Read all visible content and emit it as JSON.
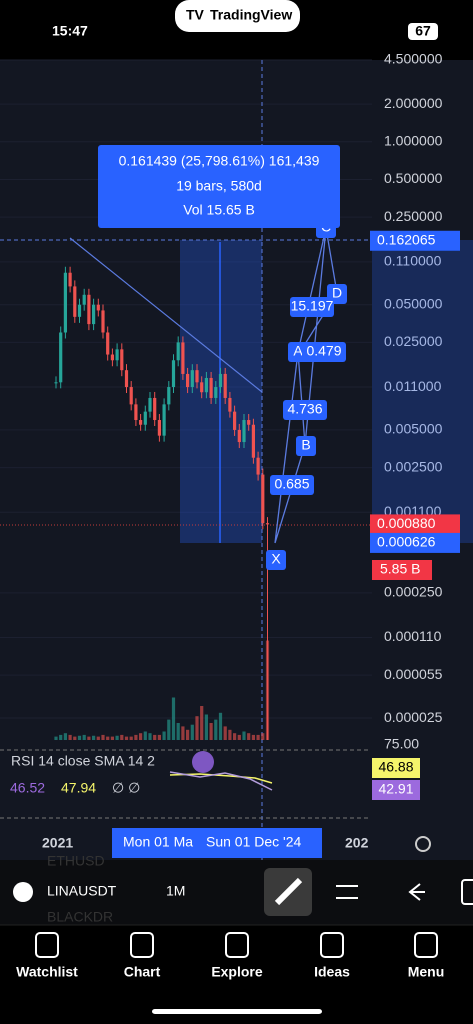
{
  "status_bar": {
    "time": "15:47",
    "app": "TradingView",
    "battery": "67"
  },
  "chart_data": {
    "type": "candlestick",
    "yscale": "log",
    "ylim": [
      1.67e-05,
      4.5
    ],
    "yticks": [
      {
        "value": 4.5,
        "label": "4.500000"
      },
      {
        "value": 2,
        "label": "2.000000"
      },
      {
        "value": 1,
        "label": "1.000000"
      },
      {
        "value": 0.5,
        "label": "0.500000"
      },
      {
        "value": 0.25,
        "label": "0.250000"
      },
      {
        "value": 0.11,
        "label": "0.110000"
      },
      {
        "value": 0.05,
        "label": "0.050000"
      },
      {
        "value": 0.025,
        "label": "0.025000"
      },
      {
        "value": 0.011,
        "label": "0.011000"
      },
      {
        "value": 0.005,
        "label": "0.005000"
      },
      {
        "value": 0.0025,
        "label": "0.002500"
      },
      {
        "value": 0.0011,
        "label": "0.001100"
      },
      {
        "value": 0.00025,
        "label": "0.000250"
      },
      {
        "value": 0.00011,
        "label": "0.000110"
      },
      {
        "value": 5.5e-05,
        "label": "0.000055"
      },
      {
        "value": 2.5e-05,
        "label": "0.000025"
      }
    ],
    "closes": [
      0.012,
      0.03,
      0.09,
      0.07,
      0.04,
      0.05,
      0.06,
      0.035,
      0.05,
      0.045,
      0.03,
      0.02,
      0.018,
      0.022,
      0.015,
      0.011,
      0.008,
      0.006,
      0.0055,
      0.007,
      0.009,
      0.006,
      0.0045,
      0.008,
      0.011,
      0.018,
      0.025,
      0.014,
      0.011,
      0.015,
      0.012,
      0.01,
      0.013,
      0.009,
      0.011,
      0.014,
      0.009,
      0.007,
      0.005,
      0.004,
      0.006,
      0.0055,
      0.003,
      0.0022,
      0.0009,
      0.00088
    ],
    "volumes": [
      0.2,
      0.3,
      0.4,
      0.3,
      0.2,
      0.25,
      0.3,
      0.2,
      0.25,
      0.2,
      0.3,
      0.2,
      0.2,
      0.25,
      0.3,
      0.2,
      0.2,
      0.3,
      0.4,
      0.5,
      0.4,
      0.3,
      0.3,
      0.5,
      1.2,
      2.5,
      1.0,
      0.8,
      0.6,
      0.9,
      1.4,
      2.0,
      1.5,
      1.0,
      1.2,
      1.6,
      0.8,
      0.6,
      0.4,
      0.3,
      0.5,
      0.4,
      0.3,
      0.3,
      0.4,
      5.85
    ],
    "price_labels": [
      {
        "value": 0.162065,
        "label": "0.162065"
      },
      {
        "value": 0.00088,
        "label": "0.000880"
      },
      {
        "value": 0.000626,
        "label": "0.000626"
      }
    ],
    "volume_label": "5.85 B",
    "measure": {
      "line1": "0.161439 (25,798.61%) 161,439",
      "line2": "19 bars, 580d",
      "line3": "Vol 15.65 B"
    },
    "pattern_labels": [
      "X",
      "A",
      "B",
      "C",
      "D",
      "0.685",
      "4.736",
      "0.479",
      "15.197"
    ],
    "rsi": {
      "title": "RSI 14 close SMA 14 2",
      "v1": "46.52",
      "v2": "47.94",
      "na": "∅ ∅",
      "level": "75.00",
      "rsi_label": "46.88",
      "sma_label": "42.91"
    },
    "x_axis": [
      "2021",
      "Mon 01 Ma",
      "Sun 01 Dec '24",
      "202"
    ]
  },
  "toolbar": {
    "symbol": "LINAUSDT",
    "interval": "1M",
    "ghost1": "ETHUSD",
    "ghost2": "BLACKDR"
  },
  "nav": [
    "Watchlist",
    "Chart",
    "Explore",
    "Ideas",
    "Menu"
  ]
}
